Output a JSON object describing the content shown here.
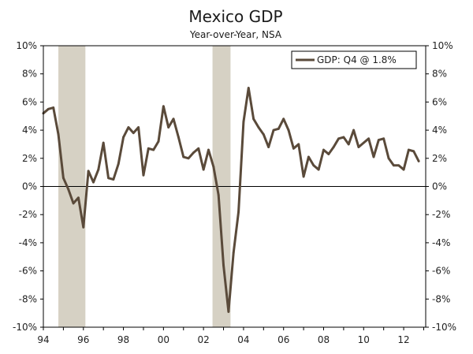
{
  "chart_data": {
    "type": "line",
    "title": "Mexico GDP",
    "subtitle": "Year-over-Year, NSA",
    "xlabel": "",
    "ylabel": "",
    "xlim": [
      1994,
      2013.1
    ],
    "ylim": [
      -10,
      10
    ],
    "y_ticks": [
      -10,
      -8,
      -6,
      -4,
      -2,
      0,
      2,
      4,
      6,
      8,
      10
    ],
    "y_tick_labels": [
      "-10%",
      "-8%",
      "-6%",
      "-4%",
      "-2%",
      "0%",
      "2%",
      "4%",
      "6%",
      "8%",
      "10%"
    ],
    "x_ticks": [
      1994,
      1996,
      1998,
      2000,
      2002,
      2004,
      2006,
      2008,
      2010,
      2012
    ],
    "x_tick_labels": [
      "94",
      "96",
      "98",
      "00",
      "02",
      "04",
      "06",
      "08",
      "10",
      "12"
    ],
    "recessions": [
      [
        1994.75,
        1996.1
      ],
      [
        2002.45,
        2003.35
      ]
    ],
    "legend": {
      "label": "GDP: Q4 @ 1.8%",
      "position": "top-right"
    },
    "series": [
      {
        "name": "GDP",
        "color": "#5a4a3a",
        "x": [
          1994.0,
          1994.25,
          1994.5,
          1994.75,
          1995.0,
          1995.25,
          1995.5,
          1995.75,
          1996.0,
          1996.25,
          1996.5,
          1996.75,
          1997.0,
          1997.25,
          1997.5,
          1997.75,
          1998.0,
          1998.25,
          1998.5,
          1998.75,
          1999.0,
          1999.25,
          1999.5,
          1999.75,
          2000.0,
          2000.25,
          2000.5,
          2000.75,
          2001.0,
          2001.25,
          2001.5,
          2001.75,
          2002.0,
          2002.25,
          2002.5,
          2002.75,
          2003.0,
          2003.25,
          2003.5,
          2003.75,
          2004.0,
          2004.25,
          2004.5,
          2004.75,
          2005.0,
          2005.25,
          2005.5,
          2005.75,
          2006.0,
          2006.25,
          2006.5,
          2006.75,
          2007.0,
          2007.25,
          2007.5,
          2007.75,
          2008.0,
          2008.25,
          2008.5,
          2008.75,
          2009.0,
          2009.25,
          2009.5,
          2009.75,
          2010.0,
          2010.25,
          2010.5,
          2010.75,
          2011.0,
          2011.25,
          2011.5,
          2011.75,
          2012.0,
          2012.25,
          2012.5,
          2012.75
        ],
        "values": [
          5.2,
          5.5,
          5.6,
          3.7,
          0.6,
          -0.2,
          -1.2,
          -0.8,
          -2.9,
          1.1,
          0.3,
          1.2,
          3.1,
          0.6,
          0.5,
          1.6,
          3.5,
          4.2,
          3.8,
          4.2,
          0.8,
          2.7,
          2.6,
          3.2,
          5.7,
          4.2,
          4.8,
          3.5,
          2.1,
          2.0,
          2.4,
          2.7,
          1.2,
          2.6,
          1.4,
          -0.6,
          -5.6,
          -8.9,
          -4.7,
          -1.8,
          4.6,
          7.0,
          4.8,
          4.2,
          3.7,
          2.8,
          4.0,
          4.1,
          4.8,
          4.0,
          2.7,
          3.0,
          0.7,
          2.1,
          1.5,
          1.2,
          2.6,
          2.3,
          2.8,
          3.4,
          3.5,
          3.0,
          4.0,
          2.8,
          3.1,
          3.4,
          2.1,
          3.3,
          3.4,
          2.0,
          1.5,
          1.5,
          1.2,
          2.6,
          2.5,
          1.8
        ]
      }
    ]
  }
}
